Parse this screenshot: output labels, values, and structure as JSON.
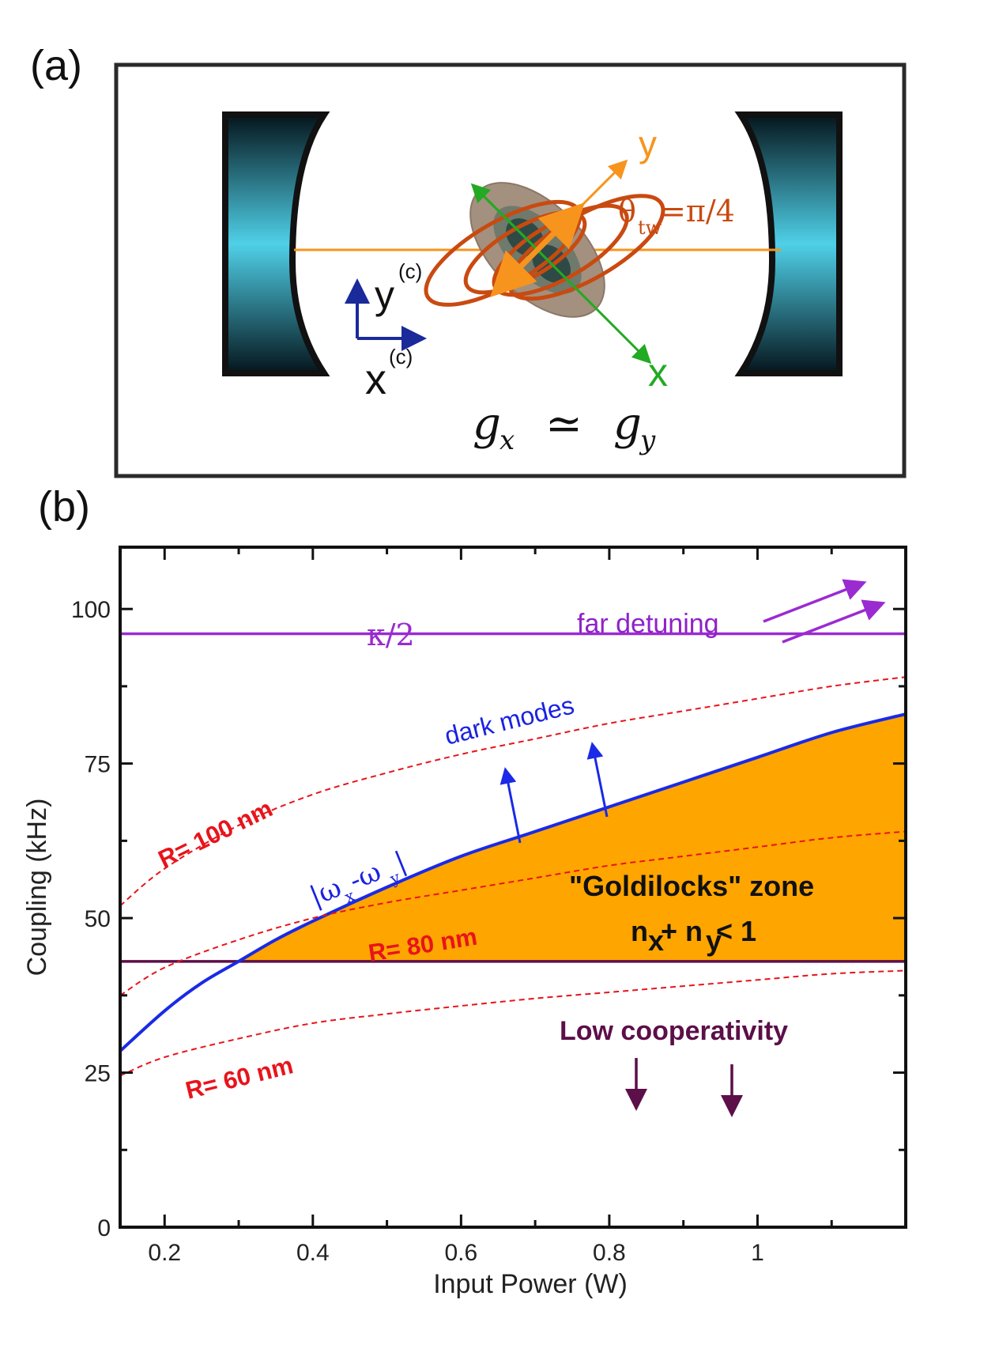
{
  "panel_a": {
    "label": "(a)",
    "axis_y": "y",
    "axis_x": "x",
    "lab_y": "y",
    "lab_y_sup": "(c)",
    "lab_x": "x",
    "lab_x_sup": "(c)",
    "theta_sym": "θ",
    "theta_sub": "tw",
    "theta_val": "=π/4",
    "eq_gx": "g",
    "eq_gx_sub": "x",
    "eq_rel": "≃",
    "eq_gy": "g",
    "eq_gy_sub": "y",
    "colors": {
      "orange": "#f7941d",
      "rust": "#c94a10",
      "green": "#22aa22",
      "blue": "#1a2a9a",
      "mirror": "#4fd0e8"
    }
  },
  "panel_b": {
    "label": "(b)"
  },
  "chart_data": {
    "type": "line",
    "xlabel": "Input Power (W)",
    "ylabel": "Coupling (kHz)",
    "xlim": [
      0.14,
      1.2
    ],
    "ylim": [
      0,
      110
    ],
    "xticks": [
      0.2,
      0.4,
      0.6,
      0.8,
      1
    ],
    "xtick_labels": [
      "0.2",
      "0.4",
      "0.6",
      "0.8",
      "1"
    ],
    "yticks": [
      0,
      25,
      50,
      75,
      100
    ],
    "ytick_labels": [
      "0",
      "25",
      "50",
      "75",
      "100"
    ],
    "hlines": [
      {
        "name": "kappa-half",
        "y": 96,
        "color": "#9a2bd0",
        "label": "κ/2"
      },
      {
        "name": "low-cooperativity-threshold",
        "y": 43,
        "color": "#5c0f48"
      }
    ],
    "series": [
      {
        "name": "|ωx-ωy|",
        "color": "#1a2ae6",
        "style": "solid",
        "x": [
          0.14,
          0.2,
          0.25,
          0.3,
          0.35,
          0.4,
          0.5,
          0.6,
          0.7,
          0.8,
          0.9,
          1.0,
          1.1,
          1.2
        ],
        "y": [
          28.5,
          35,
          39.5,
          43,
          46.5,
          49.5,
          55,
          60,
          64,
          68,
          72,
          76,
          80,
          83
        ]
      },
      {
        "name": "R= 100 nm",
        "color": "#e8141b",
        "style": "dashed",
        "x": [
          0.14,
          0.2,
          0.3,
          0.4,
          0.5,
          0.6,
          0.7,
          0.8,
          0.9,
          1.0,
          1.1,
          1.2
        ],
        "y": [
          52,
          58,
          65,
          70,
          73.5,
          76.5,
          79,
          81.5,
          83.5,
          85.5,
          87.5,
          89
        ]
      },
      {
        "name": "R= 80 nm",
        "color": "#e8141b",
        "style": "dashed",
        "x": [
          0.14,
          0.2,
          0.3,
          0.4,
          0.5,
          0.6,
          0.7,
          0.8,
          0.9,
          1.0,
          1.1,
          1.2
        ],
        "y": [
          37.5,
          42,
          46.5,
          50,
          52.5,
          54.5,
          56.5,
          58.5,
          60,
          61.5,
          63,
          64
        ]
      },
      {
        "name": "R= 60 nm",
        "color": "#e8141b",
        "style": "dashed",
        "x": [
          0.14,
          0.2,
          0.3,
          0.4,
          0.5,
          0.6,
          0.7,
          0.8,
          0.9,
          1.0,
          1.1,
          1.2
        ],
        "y": [
          24.5,
          27.5,
          30.5,
          33,
          34.5,
          35.8,
          37,
          38,
          39,
          40,
          41,
          41.5
        ]
      }
    ],
    "fill_region": {
      "name": "Goldilocks zone",
      "color": "#ffa500",
      "lower_y": 43,
      "upper_series": "|ωx-ωy|"
    },
    "annotations": {
      "kappa": "κ/2",
      "far_detuning": "far detuning",
      "dark_modes": "dark modes",
      "goldilocks": "\"Goldilocks\" zone",
      "nx": "n",
      "nx_sub": "x",
      "plus": "+ n",
      "ny_sub": "y",
      "lt_one": " < 1",
      "low_coop": "Low cooperativity",
      "r100": "R= 100 nm",
      "r80": "R= 80 nm",
      "r60": "R= 60 nm",
      "omega_open": "|ω",
      "omega_sub_x": "x",
      "omega_mid": "-ω",
      "omega_sub_y": "y",
      "omega_close": "|"
    }
  }
}
